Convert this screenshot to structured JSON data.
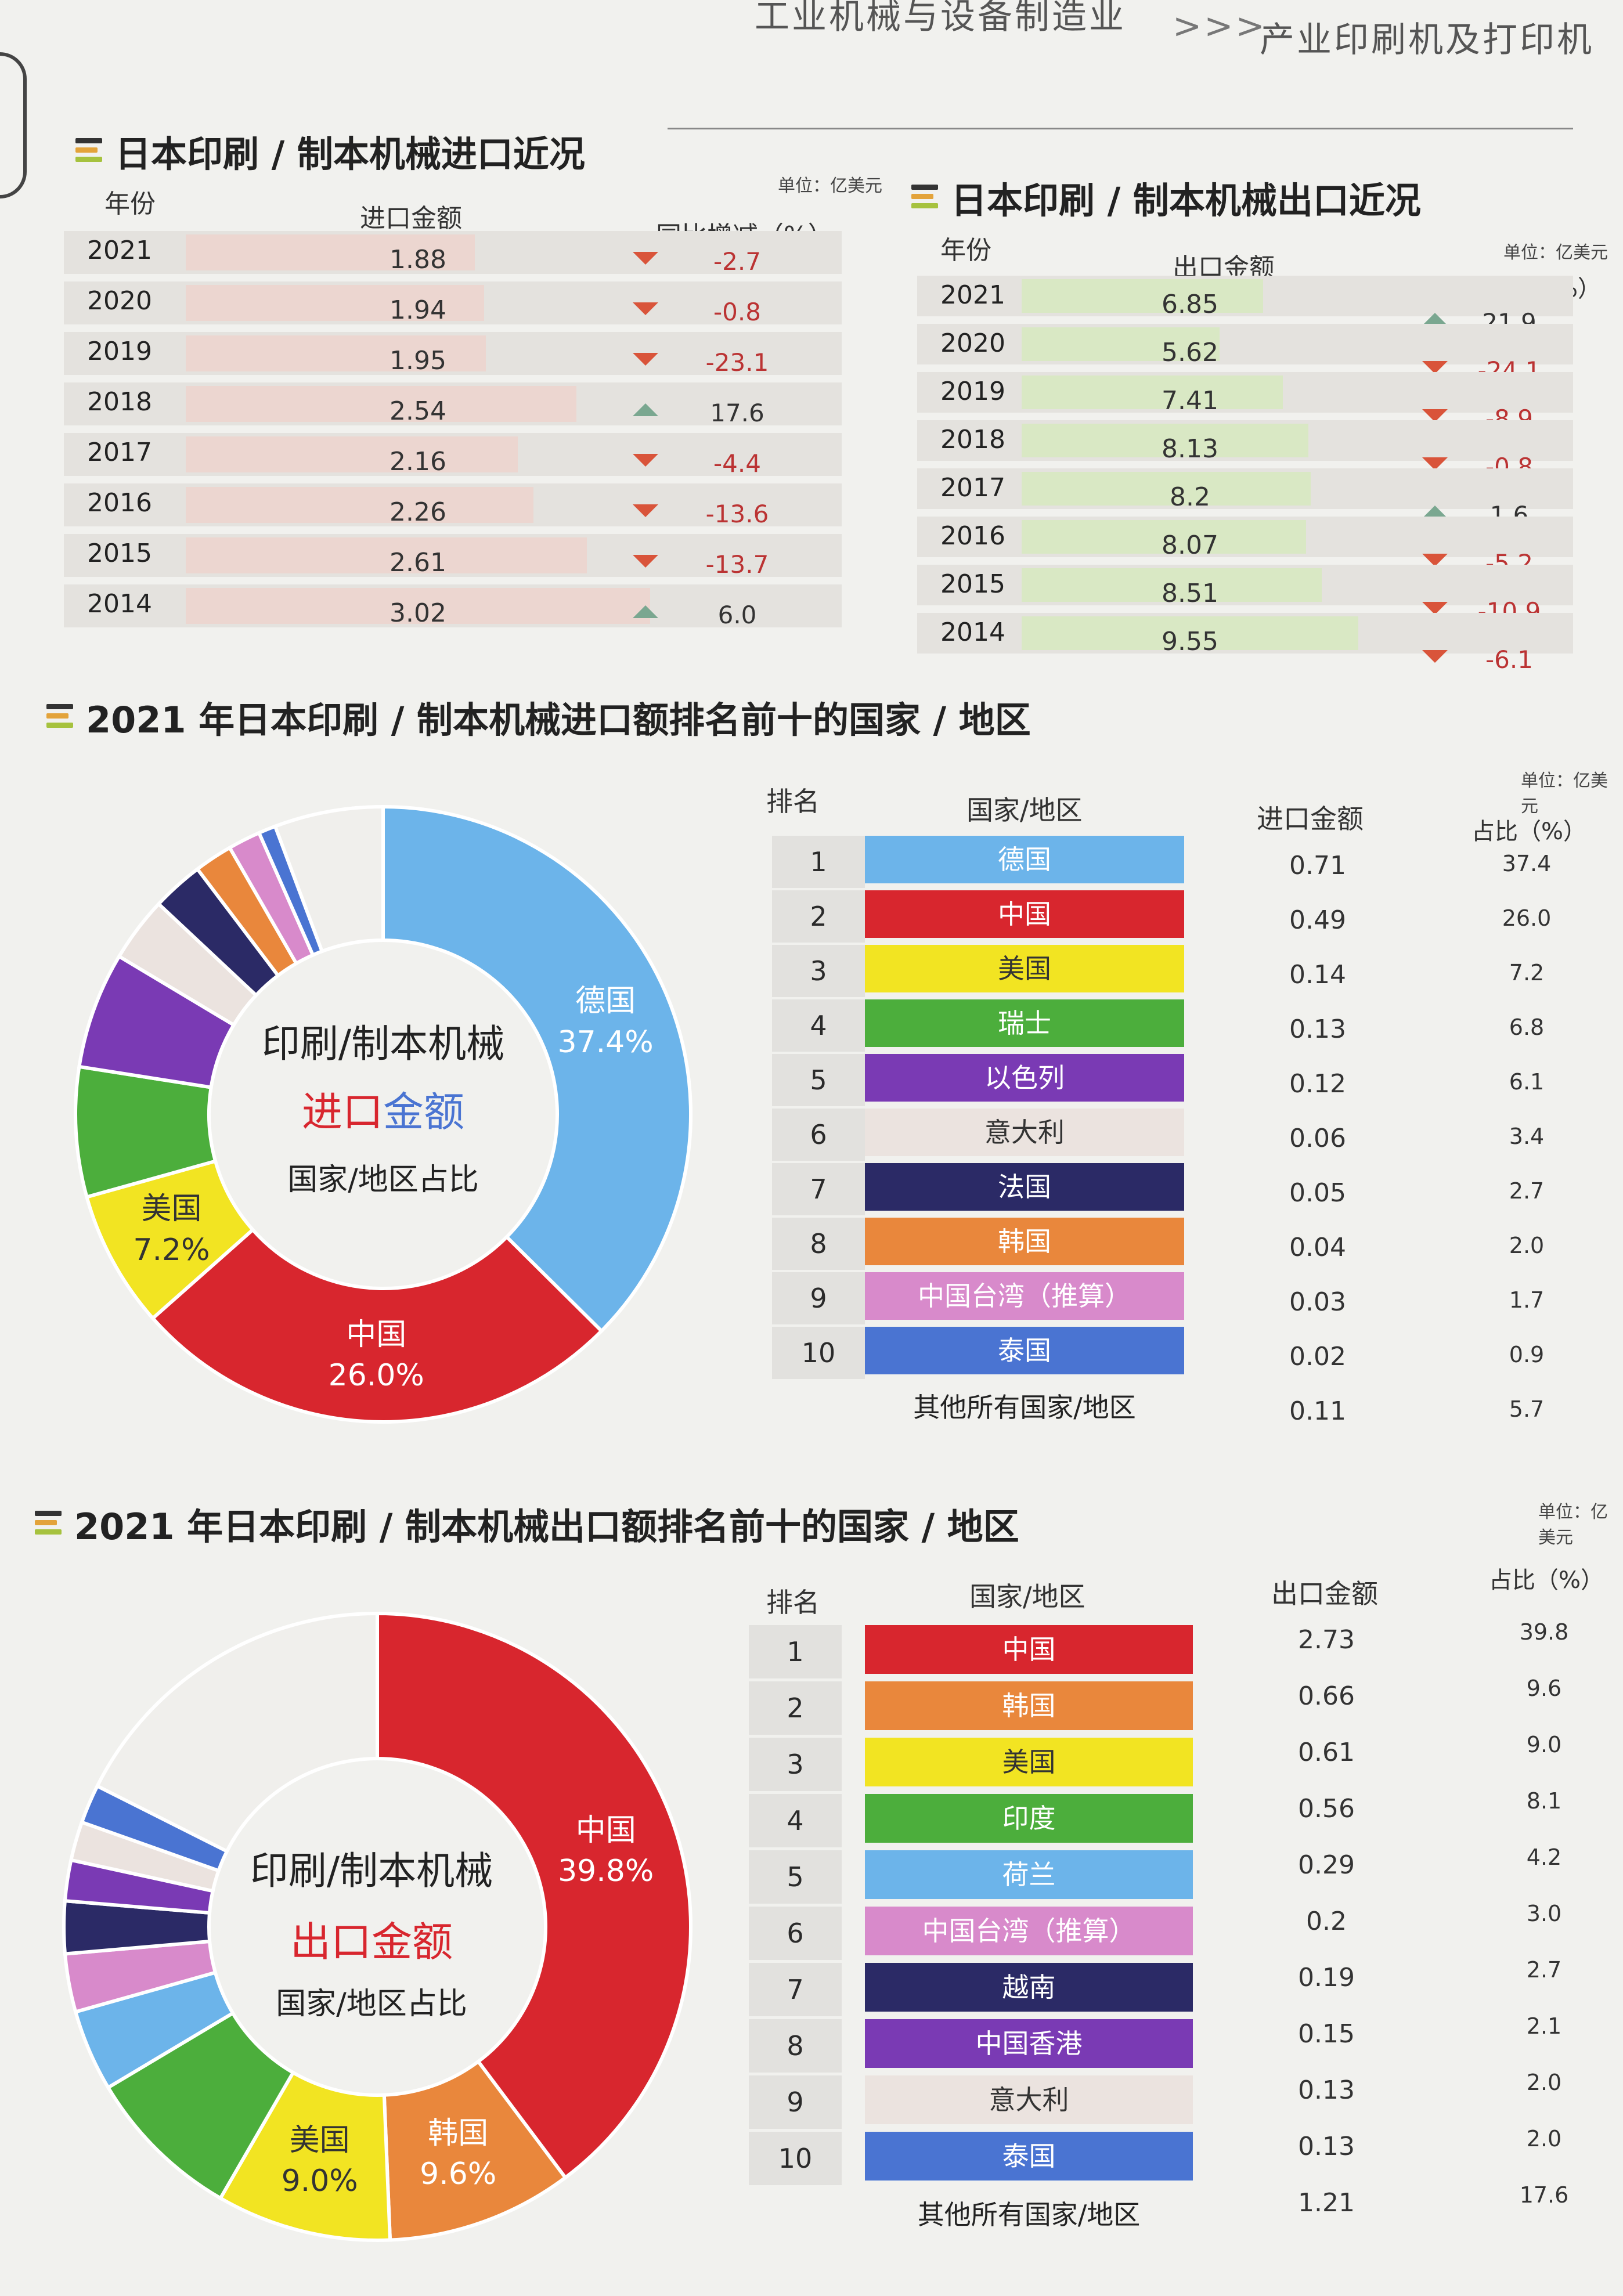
{
  "header": {
    "category1": "工业机械与设备制造业",
    "separator": ">>>",
    "category2": "产业印刷机及打印机"
  },
  "import_trend": {
    "title": "日本印刷 / 制本机械进口近况",
    "unit": "单位：亿美元",
    "col_year": "年份",
    "col_amount": "进口金额",
    "col_yoy": "同比增减（%）",
    "rows": [
      {
        "year": "2021",
        "amount": "1.88",
        "yoy": "-2.7",
        "dir": "down"
      },
      {
        "year": "2020",
        "amount": "1.94",
        "yoy": "-0.8",
        "dir": "down"
      },
      {
        "year": "2019",
        "amount": "1.95",
        "yoy": "-23.1",
        "dir": "down"
      },
      {
        "year": "2018",
        "amount": "2.54",
        "yoy": "17.6",
        "dir": "up"
      },
      {
        "year": "2017",
        "amount": "2.16",
        "yoy": "-4.4",
        "dir": "down"
      },
      {
        "year": "2016",
        "amount": "2.26",
        "yoy": "-13.6",
        "dir": "down"
      },
      {
        "year": "2015",
        "amount": "2.61",
        "yoy": "-13.7",
        "dir": "down"
      },
      {
        "year": "2014",
        "amount": "3.02",
        "yoy": "6.0",
        "dir": "up"
      }
    ]
  },
  "export_trend": {
    "title": "日本印刷 / 制本机械出口近况",
    "unit": "单位：亿美元",
    "col_year": "年份",
    "col_amount": "出口金额",
    "col_yoy": "同比增减（%）",
    "rows": [
      {
        "year": "2021",
        "amount": "6.85",
        "yoy": "21.9",
        "dir": "up"
      },
      {
        "year": "2020",
        "amount": "5.62",
        "yoy": "-24.1",
        "dir": "down"
      },
      {
        "year": "2019",
        "amount": "7.41",
        "yoy": "-8.9",
        "dir": "down"
      },
      {
        "year": "2018",
        "amount": "8.13",
        "yoy": "-0.8",
        "dir": "down"
      },
      {
        "year": "2017",
        "amount": "8.2",
        "yoy": "1.6",
        "dir": "up"
      },
      {
        "year": "2016",
        "amount": "8.07",
        "yoy": "-5.2",
        "dir": "down"
      },
      {
        "year": "2015",
        "amount": "8.51",
        "yoy": "-10.9",
        "dir": "down"
      },
      {
        "year": "2014",
        "amount": "9.55",
        "yoy": "-6.1",
        "dir": "down"
      }
    ]
  },
  "import_rank": {
    "title": "2021 年日本印刷 / 制本机械进口额排名前十的国家 / 地区",
    "unit": "单位：亿美元",
    "col_rank": "排名",
    "col_country": "国家/地区",
    "col_amount": "进口金额",
    "col_pct": "占比（%）",
    "center": {
      "line1": "印刷/制本机械",
      "line2a": "进口",
      "line2b": "金额",
      "line3": "国家/地区占比"
    },
    "rows": [
      {
        "rank": "1",
        "country": "德国",
        "amount": "0.71",
        "pct": "37.4",
        "color": "#6cb4ea",
        "text": "#ffffff"
      },
      {
        "rank": "2",
        "country": "中国",
        "amount": "0.49",
        "pct": "26.0",
        "color": "#d8262e",
        "text": "#ffffff"
      },
      {
        "rank": "3",
        "country": "美国",
        "amount": "0.14",
        "pct": "7.2",
        "color": "#f2e422",
        "text": "#333333"
      },
      {
        "rank": "4",
        "country": "瑞士",
        "amount": "0.13",
        "pct": "6.8",
        "color": "#4cae3c",
        "text": "#ffffff"
      },
      {
        "rank": "5",
        "country": "以色列",
        "amount": "0.12",
        "pct": "6.1",
        "color": "#7a3ab4",
        "text": "#ffffff"
      },
      {
        "rank": "6",
        "country": "意大利",
        "amount": "0.06",
        "pct": "3.4",
        "color": "#ebe3df",
        "text": "#333333"
      },
      {
        "rank": "7",
        "country": "法国",
        "amount": "0.05",
        "pct": "2.7",
        "color": "#2b2a66",
        "text": "#ffffff"
      },
      {
        "rank": "8",
        "country": "韩国",
        "amount": "0.04",
        "pct": "2.0",
        "color": "#e9873c",
        "text": "#ffffff"
      },
      {
        "rank": "9",
        "country": "中国台湾（推算）",
        "amount": "0.03",
        "pct": "1.7",
        "color": "#d88acb",
        "text": "#ffffff"
      },
      {
        "rank": "10",
        "country": "泰国",
        "amount": "0.02",
        "pct": "0.9",
        "color": "#4a74d2",
        "text": "#ffffff"
      }
    ],
    "others": {
      "country": "其他所有国家/地区",
      "amount": "0.11",
      "pct": "5.7",
      "color": "#f0efec"
    }
  },
  "export_rank": {
    "title": "2021 年日本印刷 / 制本机械出口额排名前十的国家 / 地区",
    "unit": "单位：亿美元",
    "col_rank": "排名",
    "col_country": "国家/地区",
    "col_amount": "出口金额",
    "col_pct": "占比（%）",
    "center": {
      "line1": "印刷/制本机械",
      "line2a": "出口",
      "line2b": "金额",
      "line3": "国家/地区占比"
    },
    "rows": [
      {
        "rank": "1",
        "country": "中国",
        "amount": "2.73",
        "pct": "39.8",
        "color": "#d8262e",
        "text": "#ffffff"
      },
      {
        "rank": "2",
        "country": "韩国",
        "amount": "0.66",
        "pct": "9.6",
        "color": "#e9873c",
        "text": "#ffffff"
      },
      {
        "rank": "3",
        "country": "美国",
        "amount": "0.61",
        "pct": "9.0",
        "color": "#f2e422",
        "text": "#333333"
      },
      {
        "rank": "4",
        "country": "印度",
        "amount": "0.56",
        "pct": "8.1",
        "color": "#4cae3c",
        "text": "#ffffff"
      },
      {
        "rank": "5",
        "country": "荷兰",
        "amount": "0.29",
        "pct": "4.2",
        "color": "#6cb4ea",
        "text": "#ffffff"
      },
      {
        "rank": "6",
        "country": "中国台湾（推算）",
        "amount": "0.2",
        "pct": "3.0",
        "color": "#d88acb",
        "text": "#ffffff"
      },
      {
        "rank": "7",
        "country": "越南",
        "amount": "0.19",
        "pct": "2.7",
        "color": "#2b2a66",
        "text": "#ffffff"
      },
      {
        "rank": "8",
        "country": "中国香港",
        "amount": "0.15",
        "pct": "2.1",
        "color": "#7a3ab4",
        "text": "#ffffff"
      },
      {
        "rank": "9",
        "country": "意大利",
        "amount": "0.13",
        "pct": "2.0",
        "color": "#ebe3df",
        "text": "#333333"
      },
      {
        "rank": "10",
        "country": "泰国",
        "amount": "0.13",
        "pct": "2.0",
        "color": "#4a74d2",
        "text": "#ffffff"
      }
    ],
    "others": {
      "country": "其他所有国家/地区",
      "amount": "1.21",
      "pct": "17.6",
      "color": "#f0efec"
    }
  },
  "chart_data": [
    {
      "type": "bar",
      "title": "日本印刷 / 制本机械进口近况",
      "categories": [
        "2021",
        "2020",
        "2019",
        "2018",
        "2017",
        "2016",
        "2015",
        "2014"
      ],
      "values": [
        1.88,
        1.94,
        1.95,
        2.54,
        2.16,
        2.26,
        2.61,
        3.02
      ],
      "yoy": [
        -2.7,
        -0.8,
        -23.1,
        17.6,
        -4.4,
        -13.6,
        -13.7,
        6.0
      ]
    },
    {
      "type": "bar",
      "title": "日本印刷 / 制本机械出口近况",
      "categories": [
        "2021",
        "2020",
        "2019",
        "2018",
        "2017",
        "2016",
        "2015",
        "2014"
      ],
      "values": [
        6.85,
        5.62,
        7.41,
        8.13,
        8.2,
        8.07,
        8.51,
        9.55
      ],
      "yoy": [
        21.9,
        -24.1,
        -8.9,
        -0.8,
        1.6,
        -5.2,
        -10.9,
        -6.1
      ]
    },
    {
      "type": "pie",
      "title": "2021 年日本印刷 / 制本机械进口额排名前十的国家 / 地区",
      "categories": [
        "德国",
        "中国",
        "美国",
        "瑞士",
        "以色列",
        "意大利",
        "法国",
        "韩国",
        "中国台湾（推算）",
        "泰国",
        "其他所有国家/地区"
      ],
      "values": [
        37.4,
        26.0,
        7.2,
        6.8,
        6.1,
        3.4,
        2.7,
        2.0,
        1.7,
        0.9,
        5.7
      ]
    },
    {
      "type": "pie",
      "title": "2021 年日本印刷 / 制本机械出口额排名前十的国家 / 地区",
      "categories": [
        "中国",
        "韩国",
        "美国",
        "印度",
        "荷兰",
        "中国台湾（推算）",
        "越南",
        "中国香港",
        "意大利",
        "泰国",
        "其他所有国家/地区"
      ],
      "values": [
        39.8,
        9.6,
        9.0,
        8.1,
        4.2,
        3.0,
        2.7,
        2.1,
        2.0,
        2.0,
        17.6
      ]
    }
  ]
}
